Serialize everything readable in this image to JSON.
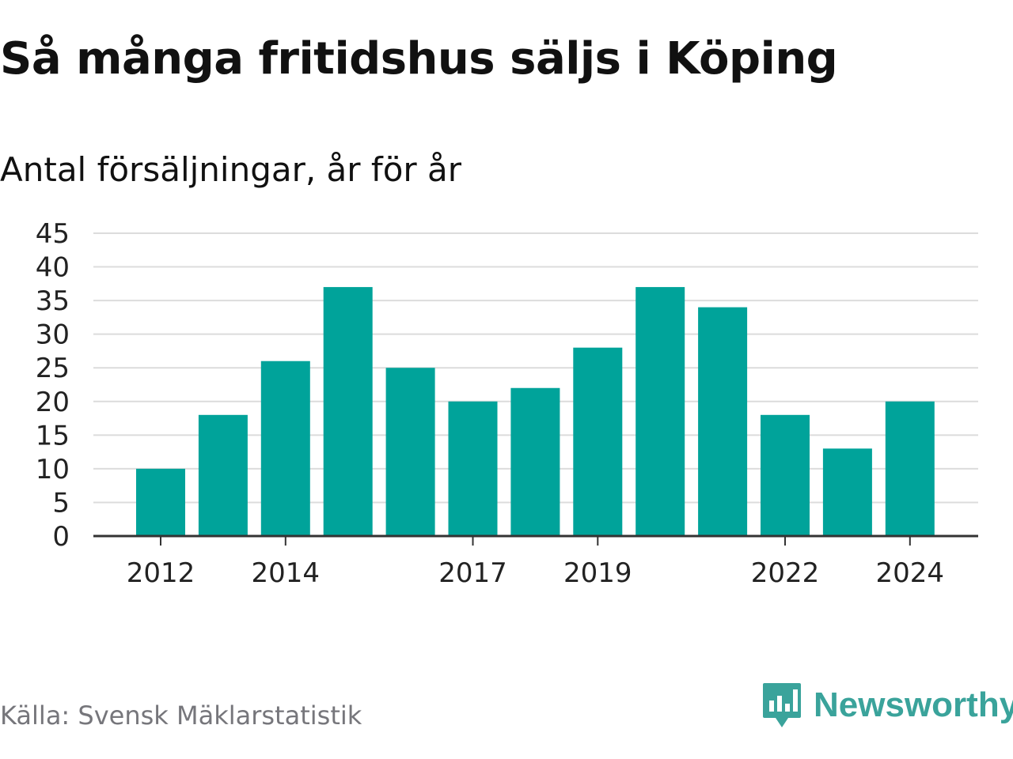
{
  "title": "Så många fritidshus säljs i Köping",
  "subtitle": "Antal försäljningar, år för år",
  "source": "Källa: Svensk Mäklarstatistik",
  "logo": {
    "text": "Newsworthy",
    "icon": "newsworthy-chart-bubble-icon"
  },
  "colors": {
    "bar": "#00a39a",
    "grid": "#dcdcdc",
    "axis": "#333333",
    "logo": "#3aa39b",
    "source": "#76767b"
  },
  "chart_data": {
    "type": "bar",
    "categories": [
      "2012",
      "2013",
      "2014",
      "2015",
      "2016",
      "2017",
      "2018",
      "2019",
      "2020",
      "2021",
      "2022",
      "2023",
      "2024"
    ],
    "values": [
      10,
      18,
      26,
      37,
      25,
      20,
      22,
      28,
      37,
      34,
      18,
      13,
      20
    ],
    "x_tick_labels": [
      "2012",
      "2014",
      "2017",
      "2019",
      "2022",
      "2024"
    ],
    "y_ticks": [
      0,
      5,
      10,
      15,
      20,
      25,
      30,
      35,
      40,
      45
    ],
    "ylim": [
      0,
      45
    ],
    "grid": true,
    "legend": "none"
  }
}
